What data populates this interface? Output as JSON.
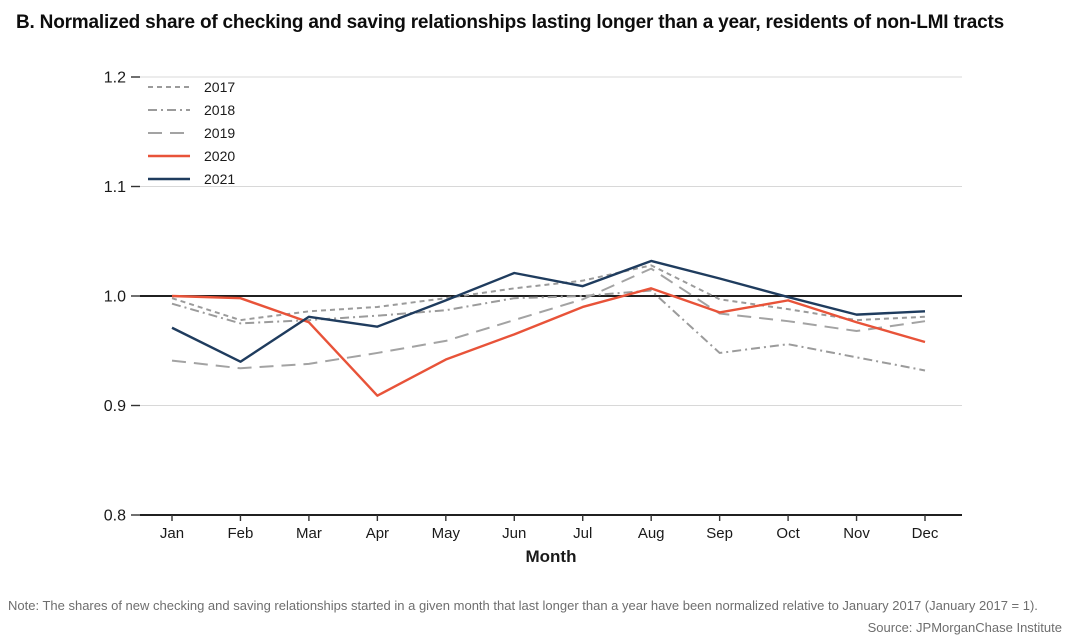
{
  "title": "B. Normalized share of checking and saving relationships lasting longer than a year, residents of non-LMI tracts",
  "note": "Note: The shares of new checking and saving relationships started in a given month that last longer than a year have been normalized relative to January 2017 (January 2017 = 1).",
  "source": "Source: JPMorganChase Institute",
  "colors": {
    "grid": "#d8d8d8",
    "axis": "#000000",
    "reference_line": "#000000",
    "tick_text": "#1a1a1a",
    "gray_series": "#9b9b9b",
    "red_2020": "#e85339",
    "navy_2021": "#1f3c5e"
  },
  "chart_data": {
    "type": "line",
    "title": "B. Normalized share of checking and saving relationships lasting longer than a year, residents of non-LMI tracts",
    "xlabel": "Month",
    "ylabel": "",
    "ylim": [
      0.8,
      1.2
    ],
    "yticks": [
      "1.2",
      "1.1",
      "1.0",
      "0.9",
      "0.8"
    ],
    "ytick_values": [
      1.2,
      1.1,
      1.0,
      0.9,
      0.8
    ],
    "reference_line": 1.0,
    "grid": "horizontal",
    "legend_position": "upper-left-inside",
    "categories": [
      "Jan",
      "Feb",
      "Mar",
      "Apr",
      "May",
      "Jun",
      "Jul",
      "Aug",
      "Sep",
      "Oct",
      "Nov",
      "Dec"
    ],
    "series": [
      {
        "name": "2017",
        "color": "#9b9b9b",
        "dash": "5,4",
        "width": 2,
        "values": [
          0.998,
          0.978,
          0.986,
          0.99,
          0.998,
          1.007,
          1.014,
          1.028,
          0.997,
          0.988,
          0.978,
          0.981
        ]
      },
      {
        "name": "2018",
        "color": "#9b9b9b",
        "dash": "9,4,2,4",
        "width": 2,
        "values": [
          0.993,
          0.975,
          0.978,
          0.982,
          0.987,
          0.998,
          1.0,
          1.005,
          0.948,
          0.956,
          0.944,
          0.932
        ]
      },
      {
        "name": "2019",
        "color": "#a3a3a3",
        "dash": "14,8",
        "width": 2,
        "values": [
          0.941,
          0.934,
          0.938,
          0.948,
          0.959,
          0.978,
          0.997,
          1.025,
          0.984,
          0.977,
          0.968,
          0.977
        ]
      },
      {
        "name": "2020",
        "color": "#e85339",
        "dash": "",
        "width": 2.4,
        "values": [
          1.0,
          0.998,
          0.976,
          0.909,
          0.942,
          0.965,
          0.99,
          1.007,
          0.985,
          0.996,
          0.976,
          0.958
        ]
      },
      {
        "name": "2021",
        "color": "#1f3c5e",
        "dash": "",
        "width": 2.4,
        "values": [
          0.971,
          0.94,
          0.981,
          0.972,
          0.996,
          1.021,
          1.009,
          1.032,
          1.016,
          0.999,
          0.983,
          0.986
        ]
      }
    ]
  }
}
